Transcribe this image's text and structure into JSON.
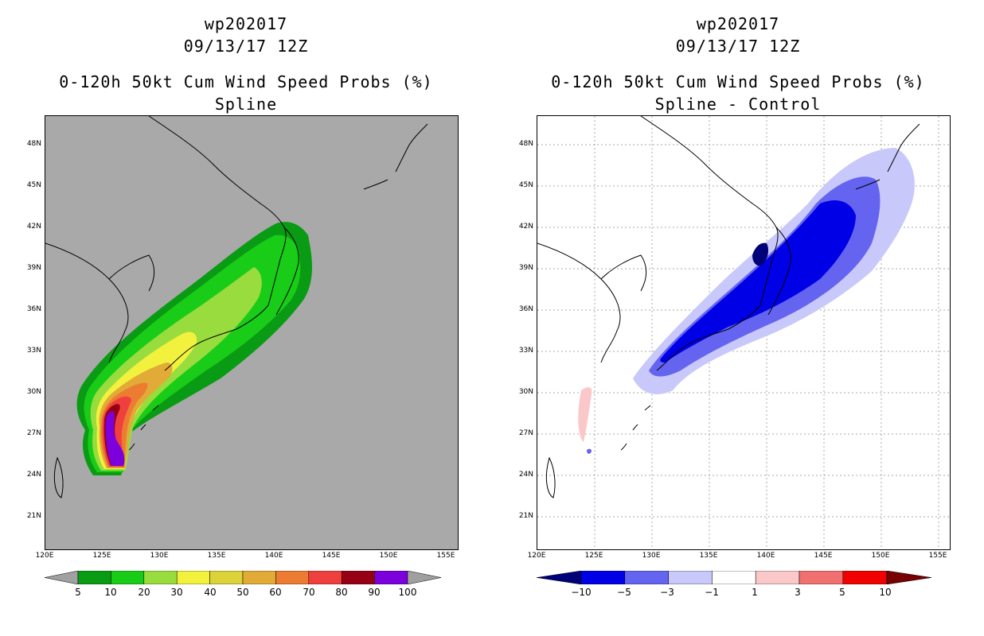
{
  "left_panel": {
    "storm_id": "wp202017",
    "datetime": "09/13/17 12Z",
    "product": "0-120h 50kt Cum Wind Speed Probs (%)",
    "subtitle": "Spline",
    "colorbar": {
      "labels": [
        "5",
        "10",
        "20",
        "30",
        "40",
        "50",
        "60",
        "70",
        "80",
        "90",
        "100"
      ],
      "colors": [
        "#0a9b14",
        "#19cc18",
        "#98dc3e",
        "#f2f23e",
        "#dcd23a",
        "#e2aa36",
        "#ec7c32",
        "#f0403e",
        "#960014",
        "#7b00dc"
      ],
      "arrow_color": "#a0a0a0"
    }
  },
  "right_panel": {
    "storm_id": "wp202017",
    "datetime": "09/13/17 12Z",
    "product": "0-120h 50kt Cum Wind Speed Probs (%)",
    "subtitle": "Spline - Control",
    "colorbar": {
      "labels": [
        "−10",
        "−5",
        "−3",
        "−1",
        "1",
        "3",
        "5",
        "10"
      ],
      "colors": [
        "#0000e6",
        "#6464f0",
        "#c8c8fa",
        "#ffffff",
        "#fac8c8",
        "#f07070",
        "#f00000"
      ],
      "low_arrow_color": "#000078",
      "high_arrow_color": "#780000"
    }
  },
  "axes": {
    "lat_labels": [
      "48N",
      "45N",
      "42N",
      "39N",
      "36N",
      "33N",
      "30N",
      "27N",
      "24N",
      "21N"
    ],
    "lon_labels": [
      "120E",
      "125E",
      "130E",
      "135E",
      "140E",
      "145E",
      "150E",
      "155E"
    ]
  },
  "chart_data": [
    {
      "type": "heatmap",
      "title": "0-120h 50kt Cum Wind Speed Probs (%) — Spline",
      "units": "%",
      "levels": [
        5,
        10,
        20,
        30,
        40,
        50,
        60,
        70,
        80,
        90,
        100
      ],
      "lon_range": [
        120,
        156
      ],
      "lat_range": [
        18.5,
        50
      ],
      "max_region": {
        "center_lon": 125,
        "center_lat": 26,
        "value_range": "90-100"
      }
    },
    {
      "type": "heatmap",
      "title": "0-120h 50kt Cum Wind Speed Probs (%) — Spline - Control",
      "units": "%",
      "levels": [
        -10,
        -5,
        -3,
        -1,
        1,
        3,
        5,
        10
      ],
      "lon_range": [
        120,
        156
      ],
      "lat_range": [
        18.5,
        50
      ],
      "min_region": {
        "center_lon": 138,
        "center_lat": 40,
        "value_range": "< -10"
      },
      "positive_region": {
        "center_lon": 123.5,
        "center_lat": 28.5,
        "value_range": "1-3"
      }
    }
  ]
}
